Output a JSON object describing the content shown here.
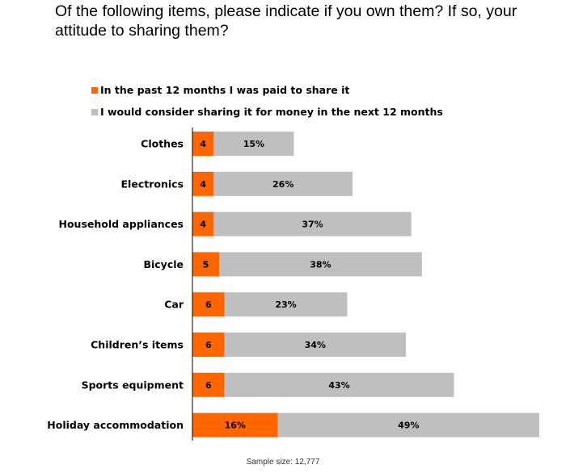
{
  "title": "Of the following items, please indicate if you own them? If so, your attitude to sharing them?",
  "footnote": "Sample size: 12,777",
  "colors": {
    "paid": "#ff6600",
    "consider": "#bfbfbf",
    "axis": "#000000"
  },
  "chart_data": {
    "type": "bar",
    "orientation": "horizontal",
    "stacked": true,
    "title": "Of the following items, please indicate if you own them? If so, your attitude to sharing them?",
    "categories": [
      "Clothes",
      "Electronics",
      "Household appliances",
      "Bicycle",
      "Car",
      "Children’s items",
      "Sports equipment",
      "Holiday accommodation"
    ],
    "series": [
      {
        "name": "In the past 12 months I was paid to share it",
        "values": [
          4,
          4,
          4,
          5,
          6,
          6,
          6,
          16
        ],
        "labels": [
          "4",
          "4",
          "4",
          "5",
          "6",
          "6",
          "6",
          "16%"
        ],
        "color": "#ff6600"
      },
      {
        "name": "I would consider sharing it for money in the next 12 months",
        "values": [
          15,
          26,
          37,
          38,
          23,
          34,
          43,
          49
        ],
        "labels": [
          "15%",
          "26%",
          "37%",
          "38%",
          "23%",
          "34%",
          "43%",
          "49%"
        ],
        "color": "#bfbfbf"
      }
    ],
    "legend_position": "top-left",
    "grid": false,
    "xlim": [
      0,
      65
    ]
  }
}
